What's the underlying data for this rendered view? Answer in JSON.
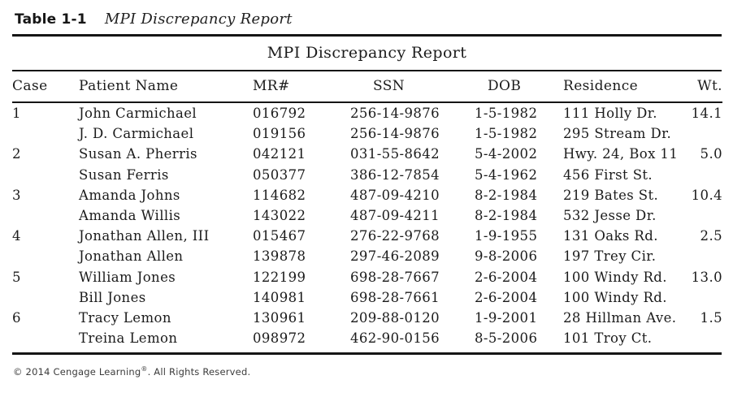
{
  "page": {
    "table_label": "Table 1-1",
    "table_caption": "MPI Discrepancy Report"
  },
  "report": {
    "title": "MPI Discrepancy Report",
    "columns": [
      "Case",
      "Patient Name",
      "MR#",
      "SSN",
      "DOB",
      "Residence",
      "Wt."
    ],
    "rows": [
      [
        "1",
        "John Carmichael",
        "016792",
        "256-14-9876",
        "1-5-1982",
        "111 Holly Dr.",
        "14.1"
      ],
      [
        "",
        "J. D. Carmichael",
        "019156",
        "256-14-9876",
        "1-5-1982",
        "295 Stream Dr.",
        ""
      ],
      [
        "2",
        "Susan A. Pherris",
        "042121",
        "031-55-8642",
        "5-4-2002",
        "Hwy. 24, Box 11",
        "5.0"
      ],
      [
        "",
        "Susan Ferris",
        "050377",
        "386-12-7854",
        "5-4-1962",
        "456 First St.",
        ""
      ],
      [
        "3",
        "Amanda Johns",
        "114682",
        "487-09-4210",
        "8-2-1984",
        "219 Bates St.",
        "10.4"
      ],
      [
        "",
        "Amanda Willis",
        "143022",
        "487-09-4211",
        "8-2-1984",
        "532 Jesse Dr.",
        ""
      ],
      [
        "4",
        "Jonathan Allen, III",
        "015467",
        "276-22-9768",
        "1-9-1955",
        "131 Oaks Rd.",
        "2.5"
      ],
      [
        "",
        "Jonathan Allen",
        "139878",
        "297-46-2089",
        "9-8-2006",
        "197 Trey Cir.",
        ""
      ],
      [
        "5",
        "William Jones",
        "122199",
        "698-28-7667",
        "2-6-2004",
        "100 Windy Rd.",
        "13.0"
      ],
      [
        "",
        "Bill Jones",
        "140981",
        "698-28-7661",
        "2-6-2004",
        "100 Windy Rd.",
        ""
      ],
      [
        "6",
        "Tracy Lemon",
        "130961",
        "209-88-0120",
        "1-9-2001",
        "28 Hillman Ave.",
        "1.5"
      ],
      [
        "",
        "Treina Lemon",
        "098972",
        "462-90-0156",
        "8-5-2006",
        "101 Troy Ct.",
        ""
      ]
    ]
  },
  "footer": {
    "prefix": "© 2014 Cengage Learning",
    "registered": "®",
    "suffix": ". All Rights Reserved."
  },
  "colors": {
    "text": "#1b1b1b",
    "rule": "#151515",
    "footer_text": "#3c3c3c",
    "background": "#ffffff"
  }
}
